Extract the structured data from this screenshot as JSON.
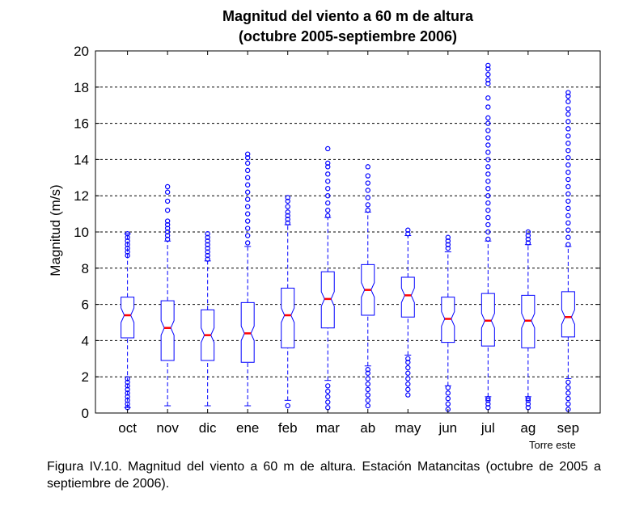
{
  "chart_data": {
    "type": "box",
    "title": "Magnitud del viento a 60 m de altura",
    "subtitle": "(octubre 2005-septiembre 2006)",
    "xlabel": "",
    "ylabel": "Magnitud (m/s)",
    "ylim": [
      0,
      20
    ],
    "yticks": [
      0,
      2,
      4,
      6,
      8,
      10,
      12,
      14,
      16,
      18,
      20
    ],
    "grid": "horizontal dashed",
    "annotation": "Torre este",
    "colors": {
      "box": "#0000ff",
      "median": "#ff0000",
      "outlier": "#0000ff",
      "axis": "#000000"
    },
    "categories": [
      "oct",
      "nov",
      "dic",
      "ene",
      "feb",
      "mar",
      "ab",
      "may",
      "jun",
      "jul",
      "ag",
      "sep"
    ],
    "boxes": [
      {
        "q1": 4.15,
        "median": 5.4,
        "q3": 6.4,
        "low": 0.3,
        "high": 9.9,
        "outliers_low": [
          0.3,
          0.5,
          0.7,
          0.9,
          1.1,
          1.3,
          1.5,
          1.7,
          1.9
        ],
        "outliers_high": [
          8.7,
          8.9,
          9.1,
          9.3,
          9.5,
          9.7,
          9.9
        ]
      },
      {
        "q1": 2.9,
        "median": 4.7,
        "q3": 6.2,
        "low": 0.4,
        "high": 9.5,
        "outliers_low": [],
        "outliers_high": [
          9.6,
          9.8,
          10.0,
          10.2,
          10.4,
          10.6,
          11.2,
          11.7,
          12.2,
          12.5
        ]
      },
      {
        "q1": 2.9,
        "median": 4.3,
        "q3": 5.7,
        "low": 0.4,
        "high": 8.4,
        "outliers_low": [],
        "outliers_high": [
          8.5,
          8.7,
          8.9,
          9.1,
          9.3,
          9.5,
          9.7,
          9.9
        ]
      },
      {
        "q1": 2.8,
        "median": 4.4,
        "q3": 6.1,
        "low": 0.4,
        "high": 9.2,
        "outliers_low": [],
        "outliers_high": [
          9.4,
          9.8,
          10.2,
          10.6,
          11.0,
          11.4,
          11.8,
          12.2,
          12.6,
          13.0,
          13.4,
          13.8,
          14.1,
          14.3
        ]
      },
      {
        "q1": 3.6,
        "median": 5.4,
        "q3": 6.9,
        "low": 0.7,
        "high": 10.4,
        "outliers_low": [
          0.4
        ],
        "outliers_high": [
          10.5,
          10.7,
          10.9,
          11.1,
          11.4,
          11.7,
          11.9
        ]
      },
      {
        "q1": 4.7,
        "median": 6.3,
        "q3": 7.8,
        "low": 1.8,
        "high": 10.8,
        "outliers_low": [
          0.3,
          0.6,
          0.9,
          1.2,
          1.5
        ],
        "outliers_high": [
          10.9,
          11.2,
          11.6,
          12.0,
          12.4,
          12.8,
          13.2,
          13.6,
          13.8,
          14.6
        ]
      },
      {
        "q1": 5.4,
        "median": 6.8,
        "q3": 8.2,
        "low": 2.6,
        "high": 11.1,
        "outliers_low": [
          0.4,
          0.7,
          1.0,
          1.3,
          1.6,
          1.9,
          2.2,
          2.4
        ],
        "outliers_high": [
          11.2,
          11.5,
          11.9,
          12.3,
          12.7,
          13.1,
          13.6
        ]
      },
      {
        "q1": 5.3,
        "median": 6.5,
        "q3": 7.5,
        "low": 3.2,
        "high": 9.8,
        "outliers_low": [
          1.0,
          1.3,
          1.6,
          1.9,
          2.2,
          2.5,
          2.8,
          3.0
        ],
        "outliers_high": [
          9.9,
          10.1
        ]
      },
      {
        "q1": 3.9,
        "median": 5.2,
        "q3": 6.4,
        "low": 1.5,
        "high": 8.9,
        "outliers_low": [
          0.2,
          0.5,
          0.8,
          1.1,
          1.4
        ],
        "outliers_high": [
          9.1,
          9.3,
          9.5,
          9.7
        ]
      },
      {
        "q1": 3.7,
        "median": 5.1,
        "q3": 6.6,
        "low": 0.9,
        "high": 9.5,
        "outliers_low": [
          0.3,
          0.5,
          0.7,
          0.8
        ],
        "outliers_high": [
          9.6,
          10.0,
          10.4,
          10.8,
          11.2,
          11.6,
          12.0,
          12.4,
          12.8,
          13.2,
          13.6,
          14.0,
          14.4,
          14.8,
          15.2,
          15.6,
          16.0,
          16.3,
          16.9,
          17.4,
          18.2,
          18.4,
          18.7,
          19.0,
          19.2
        ]
      },
      {
        "q1": 3.6,
        "median": 5.1,
        "q3": 6.5,
        "low": 0.9,
        "high": 9.3,
        "outliers_low": [
          0.3,
          0.5,
          0.7,
          0.8
        ],
        "outliers_high": [
          9.4,
          9.6,
          9.8,
          10.0
        ]
      },
      {
        "q1": 4.2,
        "median": 5.3,
        "q3": 6.7,
        "low": 1.9,
        "high": 9.2,
        "outliers_low": [
          0.2,
          0.5,
          0.8,
          1.1,
          1.4,
          1.7
        ],
        "outliers_high": [
          9.3,
          9.7,
          10.1,
          10.5,
          10.9,
          11.3,
          11.7,
          12.1,
          12.5,
          12.9,
          13.3,
          13.7,
          14.1,
          14.5,
          14.9,
          15.3,
          15.7,
          16.1,
          16.5,
          16.8,
          17.2,
          17.5,
          17.7
        ]
      }
    ]
  },
  "caption": "Figura IV.10. Magnitud del viento a 60 m de altura. Estación Matancitas (octubre de 2005 a septiembre de 2006)."
}
